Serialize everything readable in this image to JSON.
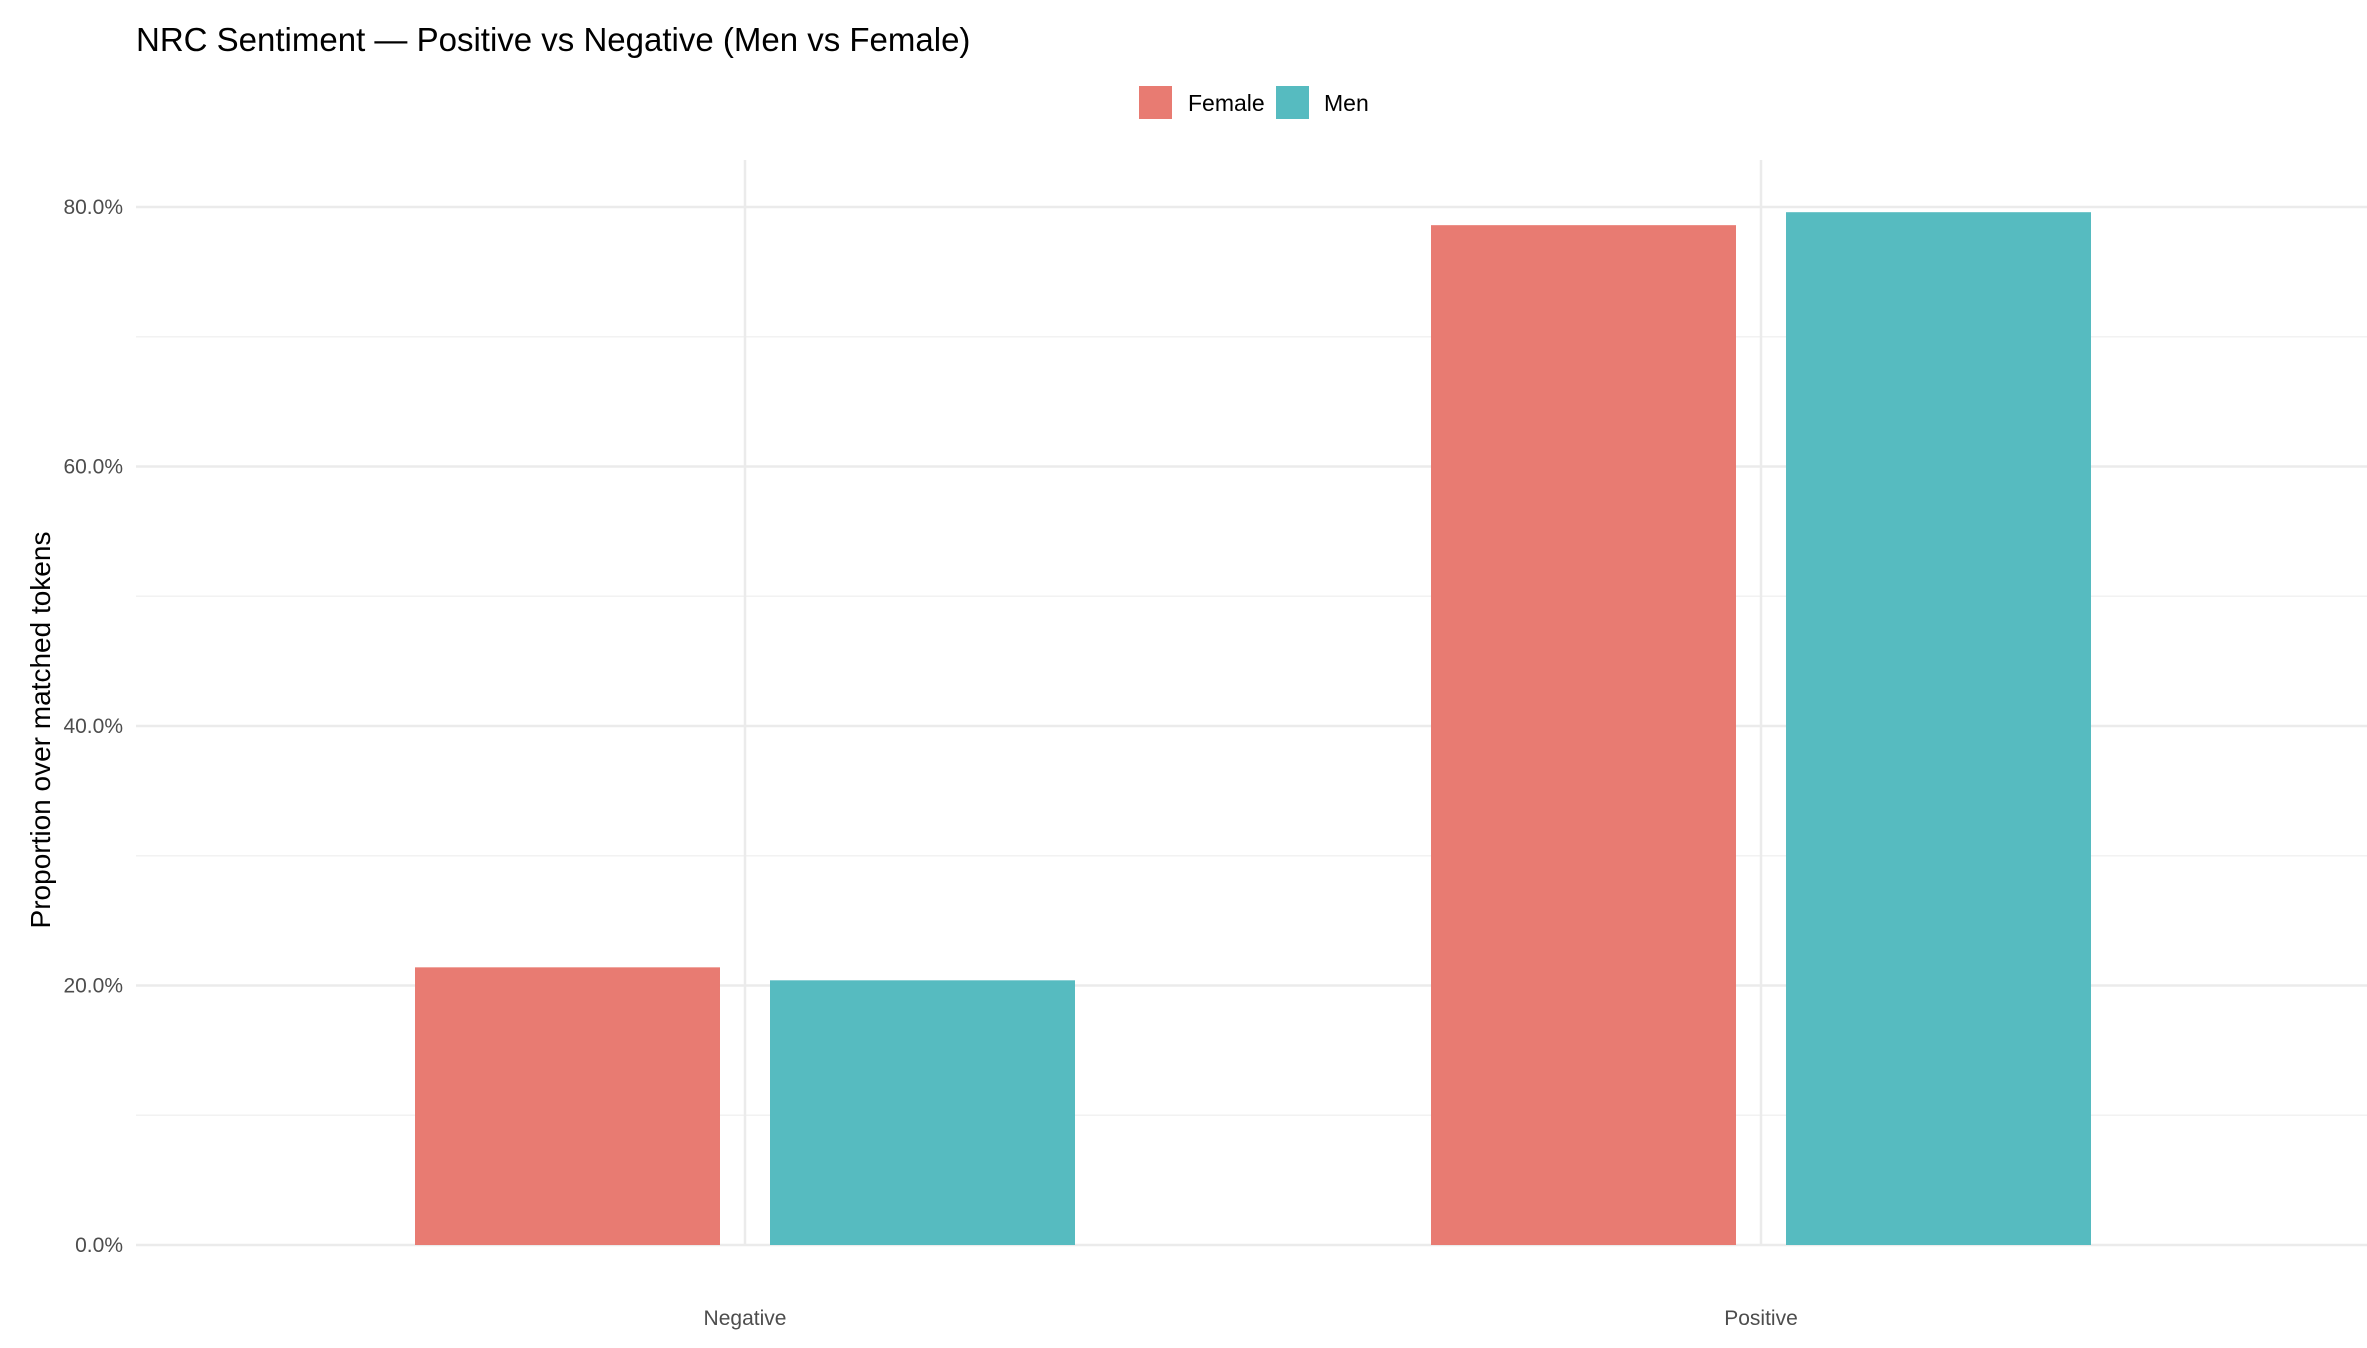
{
  "chart_data": {
    "type": "bar",
    "title": "NRC Sentiment — Positive vs Negative (Men vs Female)",
    "xlabel": "",
    "ylabel": "Proportion over matched tokens",
    "categories": [
      "Negative",
      "Positive"
    ],
    "series": [
      {
        "name": "Female",
        "values": [
          0.214,
          0.786
        ],
        "color": "#E87B72"
      },
      {
        "name": "Men",
        "values": [
          0.204,
          0.796
        ],
        "color": "#56BBC0"
      }
    ],
    "ylim": [
      0,
      0.8
    ],
    "y_ticks": [
      0,
      0.2,
      0.4,
      0.6,
      0.8
    ],
    "y_tick_labels": [
      "0.0%",
      "20.0%",
      "40.0%",
      "60.0%",
      "80.0%"
    ],
    "grid": true,
    "legend_position": "top"
  }
}
